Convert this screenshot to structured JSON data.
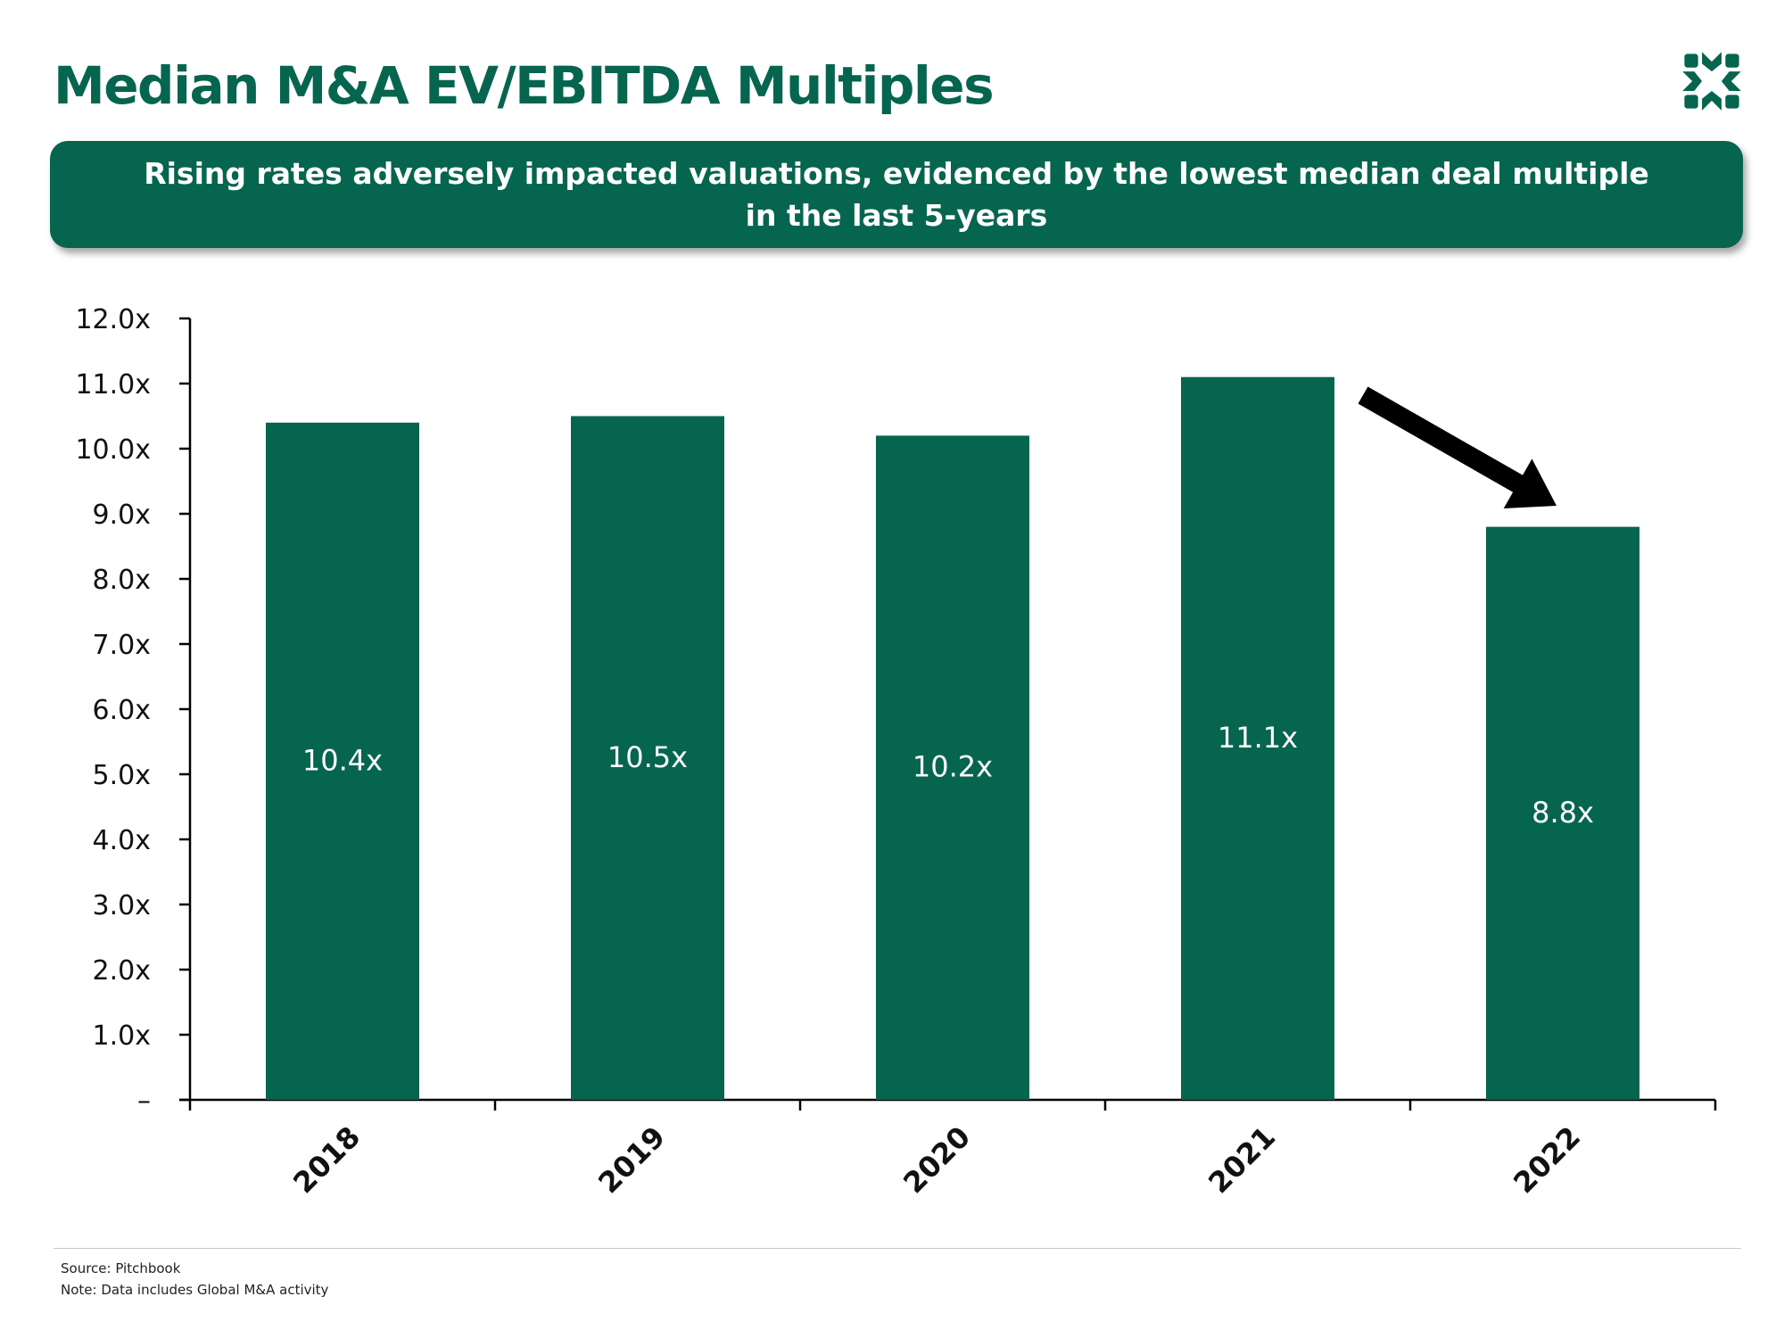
{
  "title": "Median M&A EV/EBITDA Multiples",
  "banner": {
    "line1": "Rising rates adversely impacted valuations, evidenced by the lowest median deal multiple",
    "line2": "in the last 5-years"
  },
  "colors": {
    "brand_green": "#06654f",
    "arrow": "#000000"
  },
  "logo": {
    "icon": "horse-emblem-logo"
  },
  "chart_data": {
    "type": "bar",
    "categories": [
      "2018",
      "2019",
      "2020",
      "2021",
      "2022"
    ],
    "values": [
      10.4,
      10.5,
      10.2,
      11.1,
      8.8
    ],
    "data_labels": [
      "10.4x",
      "10.5x",
      "10.2x",
      "11.1x",
      "8.8x"
    ],
    "y_ticks": [
      0,
      1,
      2,
      3,
      4,
      5,
      6,
      7,
      8,
      9,
      10,
      11,
      12
    ],
    "y_tick_labels": [
      "–",
      "1.0x",
      "2.0x",
      "3.0x",
      "4.0x",
      "5.0x",
      "6.0x",
      "7.0x",
      "8.0x",
      "9.0x",
      "10.0x",
      "11.0x",
      "12.0x"
    ],
    "ylim": [
      0,
      12
    ],
    "grid": false,
    "legend": "none",
    "annotation": "arrow pointing down from 2021 to 2022"
  },
  "footer": {
    "source": "Source: Pitchbook",
    "note": "Note: Data includes Global M&A activity"
  }
}
